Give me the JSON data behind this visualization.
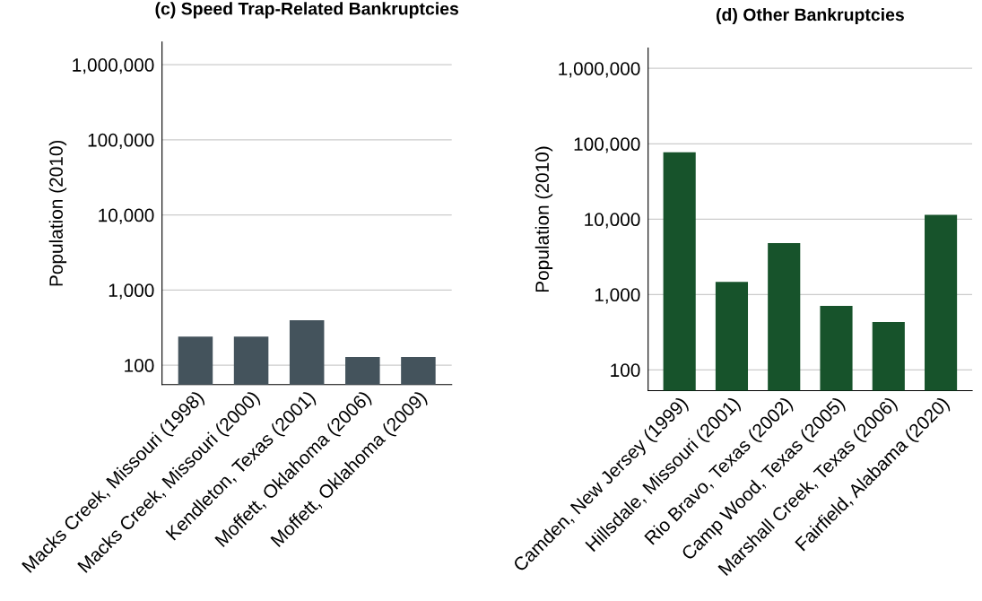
{
  "chart_data": [
    {
      "type": "bar",
      "title": "(c) Speed Trap-Related Bankruptcies",
      "ylabel": "Population (2010)",
      "categories": [
        "Macks Creek, Missouri (1998)",
        "Macks Creek, Missouri (2000)",
        "Kendleton, Texas (2001)",
        "Moffett, Oklahoma (2006)",
        "Moffett, Oklahoma (2009)"
      ],
      "values": [
        240,
        240,
        395,
        128,
        128
      ],
      "color": "#44535c",
      "log": true,
      "ylim": [
        55,
        2000000
      ],
      "yticks": [
        {
          "value": 100,
          "label": "100"
        },
        {
          "value": 1000,
          "label": "1,000"
        },
        {
          "value": 10000,
          "label": "10,000"
        },
        {
          "value": 100000,
          "label": "100,000"
        },
        {
          "value": 1000000,
          "label": "1,000,000"
        }
      ],
      "grid": "y"
    },
    {
      "type": "bar",
      "title": "(d) Other Bankruptcies",
      "ylabel": "Population (2010)",
      "categories": [
        "Camden, New Jersey (1999)",
        "Hillsdale, Missouri (2001)",
        "Rio Bravo, Texas (2002)",
        "Camp Wood, Texas (2005)",
        "Marshall Creek, Texas (2006)",
        "Fairfield, Alabama (2020)"
      ],
      "values": [
        77000,
        1470,
        4800,
        705,
        430,
        11400
      ],
      "color": "#17532b",
      "log": true,
      "ylim": [
        53,
        1860000
      ],
      "yticks": [
        {
          "value": 100,
          "label": "100"
        },
        {
          "value": 1000,
          "label": "1,000"
        },
        {
          "value": 10000,
          "label": "10,000"
        },
        {
          "value": 100000,
          "label": "100,000"
        },
        {
          "value": 1000000,
          "label": "1,000,000"
        }
      ],
      "grid": "y"
    }
  ]
}
